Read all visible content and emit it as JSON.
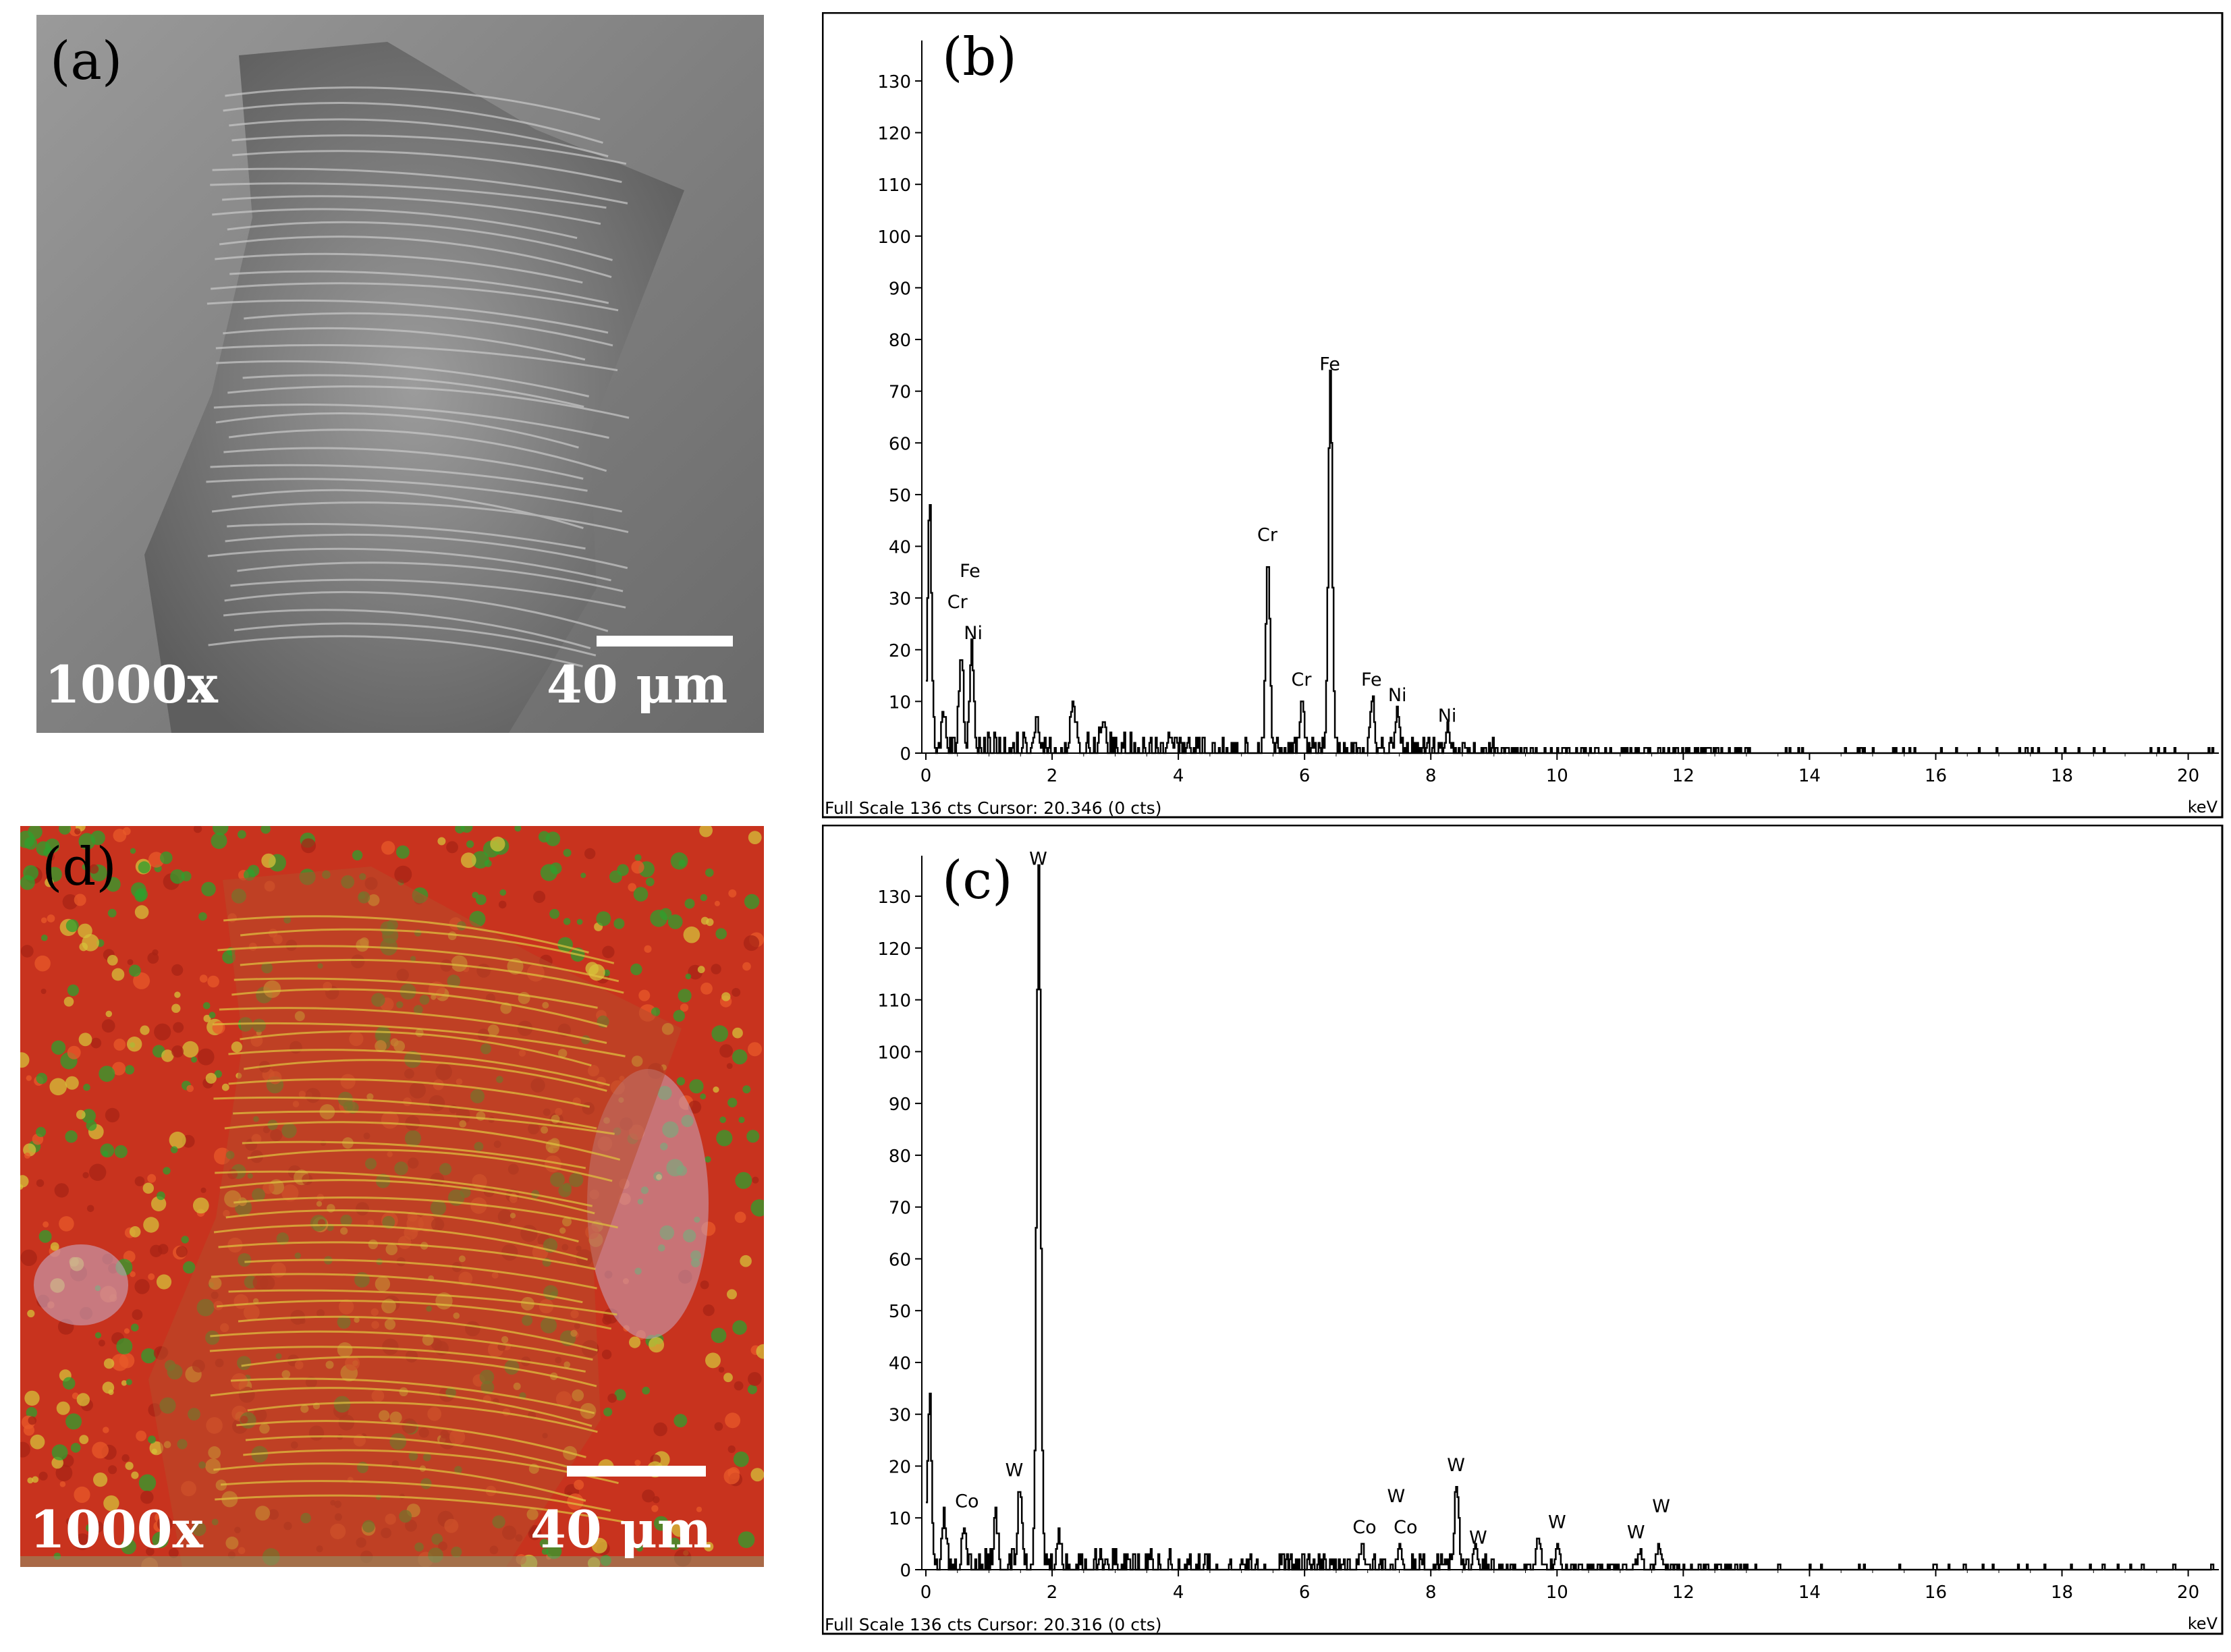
{
  "panels": {
    "a": {
      "label": "(a)",
      "magnification": "1000x",
      "scale": "40 μm"
    },
    "b": {
      "label": "(b)"
    },
    "c": {
      "label": "(c)"
    },
    "d": {
      "label": "(d)",
      "magnification": "1000x",
      "scale": "40 μm"
    }
  },
  "colors": {
    "sem_gray": "#8a8a8a",
    "map_red": "#c8331e",
    "map_green": "#2ea02e",
    "map_yellow": "#d6c23a",
    "map_pink": "#c8a8c0",
    "axis": "#000000"
  },
  "chart_data": [
    {
      "type": "line",
      "panel": "(b)",
      "yticks": [
        0,
        10,
        20,
        30,
        40,
        50,
        60,
        70,
        80,
        90,
        100,
        110,
        120,
        130
      ],
      "xticks": [
        0,
        2,
        4,
        6,
        8,
        10,
        12,
        14,
        16,
        18,
        20
      ],
      "xlim": [
        0,
        20.4
      ],
      "ylim": [
        0,
        136
      ],
      "xunit": "keV",
      "status": "Full Scale 136 cts Cursor: 20.346  (0 cts)",
      "peaks": [
        {
          "x": 0.05,
          "y": 47
        },
        {
          "x": 0.28,
          "y": 6
        },
        {
          "x": 0.55,
          "y": 19
        },
        {
          "x": 0.72,
          "y": 20
        },
        {
          "x": 1.75,
          "y": 7
        },
        {
          "x": 2.32,
          "y": 10
        },
        {
          "x": 2.8,
          "y": 6
        },
        {
          "x": 5.41,
          "y": 38
        },
        {
          "x": 5.95,
          "y": 10
        },
        {
          "x": 6.4,
          "y": 71
        },
        {
          "x": 7.06,
          "y": 10
        },
        {
          "x": 7.47,
          "y": 7
        },
        {
          "x": 8.26,
          "y": 4
        }
      ],
      "labels": [
        {
          "text": "Fe",
          "x": 0.7,
          "y": 33
        },
        {
          "text": "Cr",
          "x": 0.5,
          "y": 27
        },
        {
          "text": "Ni",
          "x": 0.75,
          "y": 21
        },
        {
          "text": "Cr",
          "x": 5.41,
          "y": 40
        },
        {
          "text": "Fe",
          "x": 6.4,
          "y": 73
        },
        {
          "text": "Cr",
          "x": 5.95,
          "y": 12
        },
        {
          "text": "Fe",
          "x": 7.06,
          "y": 12
        },
        {
          "text": "Ni",
          "x": 7.47,
          "y": 9
        },
        {
          "text": "Ni",
          "x": 8.26,
          "y": 5
        }
      ]
    },
    {
      "type": "line",
      "panel": "(c)",
      "yticks": [
        0,
        10,
        20,
        30,
        40,
        50,
        60,
        70,
        80,
        90,
        100,
        110,
        120,
        130
      ],
      "xticks": [
        0,
        2,
        4,
        6,
        8,
        10,
        12,
        14,
        16,
        18,
        20
      ],
      "xlim": [
        0,
        20.4
      ],
      "ylim": [
        0,
        136
      ],
      "xunit": "keV",
      "status": "Full Scale 136 cts Cursor: 20.316  (0 cts)",
      "peaks": [
        {
          "x": 0.05,
          "y": 32
        },
        {
          "x": 0.28,
          "y": 10
        },
        {
          "x": 0.6,
          "y": 8
        },
        {
          "x": 1.1,
          "y": 8
        },
        {
          "x": 1.48,
          "y": 15
        },
        {
          "x": 1.78,
          "y": 136
        },
        {
          "x": 2.1,
          "y": 6
        },
        {
          "x": 6.9,
          "y": 4
        },
        {
          "x": 7.5,
          "y": 5
        },
        {
          "x": 8.4,
          "y": 16
        },
        {
          "x": 8.7,
          "y": 5
        },
        {
          "x": 9.7,
          "y": 6
        },
        {
          "x": 10.0,
          "y": 5
        },
        {
          "x": 11.3,
          "y": 3
        },
        {
          "x": 11.6,
          "y": 4
        }
      ],
      "labels": [
        {
          "text": "W",
          "x": 1.78,
          "y": 135
        },
        {
          "text": "W",
          "x": 1.4,
          "y": 17
        },
        {
          "text": "Co",
          "x": 0.65,
          "y": 11
        },
        {
          "text": "W",
          "x": 7.45,
          "y": 12
        },
        {
          "text": "Co",
          "x": 6.95,
          "y": 6
        },
        {
          "text": "Co",
          "x": 7.6,
          "y": 6
        },
        {
          "text": "W",
          "x": 8.4,
          "y": 18
        },
        {
          "text": "W",
          "x": 8.75,
          "y": 4
        },
        {
          "text": "W",
          "x": 10.0,
          "y": 7
        },
        {
          "text": "W",
          "x": 11.25,
          "y": 5
        },
        {
          "text": "W",
          "x": 11.65,
          "y": 10
        }
      ]
    }
  ]
}
